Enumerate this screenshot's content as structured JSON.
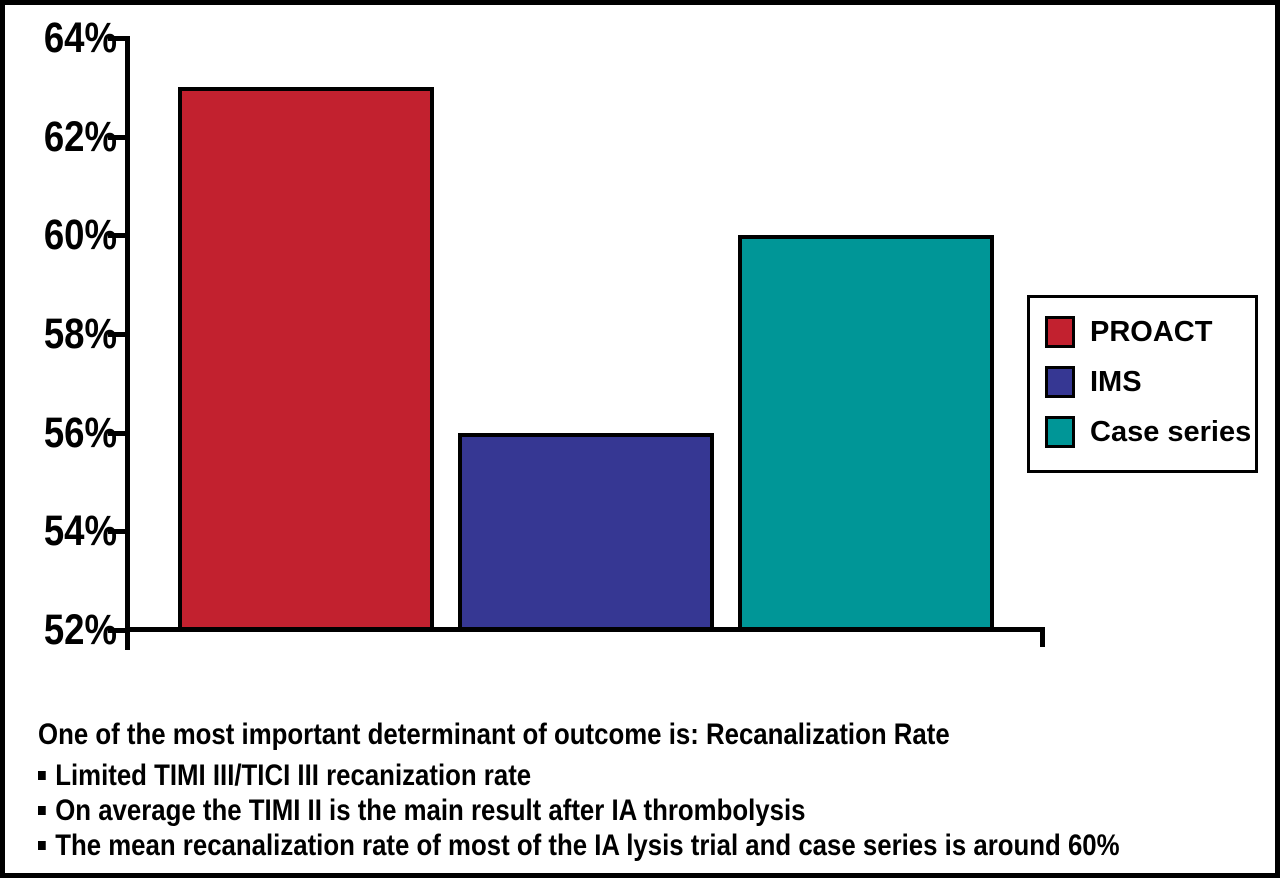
{
  "chart_data": {
    "type": "bar",
    "categories": [
      "PROACT",
      "IMS",
      "Case series"
    ],
    "values": [
      63,
      56,
      60
    ],
    "unit": "%",
    "colors": [
      "#c2212f",
      "#363793",
      "#009697"
    ],
    "ylim": [
      52,
      64
    ],
    "ytick_values": [
      64,
      62,
      60,
      58,
      56,
      54,
      52
    ],
    "ytick_labels": [
      "64%",
      "62%",
      "60%",
      "58%",
      "56%",
      "54%",
      "52%"
    ],
    "grid": false,
    "legend_position": "right",
    "xlabel": "",
    "ylabel": ""
  },
  "legend": {
    "items": [
      {
        "label": "PROACT",
        "color": "#c2212f"
      },
      {
        "label": "IMS",
        "color": "#363793"
      },
      {
        "label": "Case series",
        "color": "#009697"
      }
    ]
  },
  "notes": {
    "headline": "One of the most important determinant of outcome is: Recanalization Rate",
    "bullets": [
      "Limited TIMI III/TICI III recanization rate",
      "On average the TIMI II is the main result after IA thrombolysis",
      "The mean recanalization rate of most of the IA lysis trial and case series is around 60%"
    ]
  },
  "colors": {
    "axis": "#000000",
    "background": "#ffffff",
    "text": "#000000"
  }
}
